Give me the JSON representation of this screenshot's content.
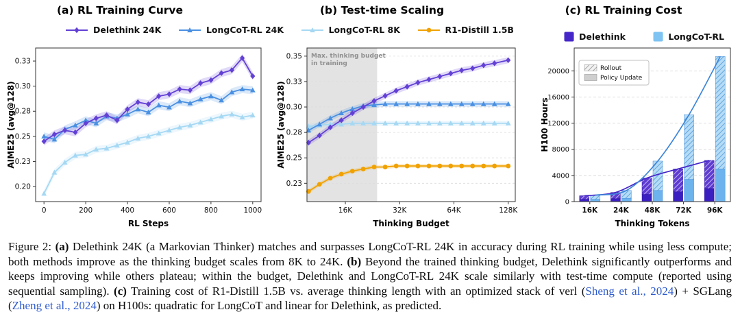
{
  "figure": {
    "panels": [
      {
        "title": "(a) RL Training Curve"
      },
      {
        "title": "(b) Test-time Scaling"
      },
      {
        "title": "(c) RL Training Cost"
      }
    ],
    "legend_ab": [
      {
        "label": "Delethink 24K",
        "color": "#6240d5",
        "marker": "diamond"
      },
      {
        "label": "LongCoT-RL 24K",
        "color": "#4a90e2",
        "marker": "triangle"
      },
      {
        "label": "LongCoT-RL 8K",
        "color": "#a5d8f3",
        "marker": "triangle"
      },
      {
        "label": "R1-Distill 1.5B",
        "color": "#f0a202",
        "marker": "circle"
      }
    ],
    "legend_c": [
      {
        "label": "Delethink",
        "color": "#4527c9"
      },
      {
        "label": "LongCoT-RL",
        "color": "#7ec3f2"
      }
    ]
  },
  "chart_data": [
    {
      "type": "line",
      "title": "(a) RL Training Curve",
      "xlabel": "RL Steps",
      "ylabel": "AIME25 (avg@128)",
      "xlim": [
        -40,
        1040
      ],
      "ylim": [
        0.185,
        0.338
      ],
      "xtick_vals": [
        0,
        200,
        400,
        600,
        800,
        1000
      ],
      "xtick_labels": [
        "0",
        "200",
        "400",
        "600",
        "800",
        "1000"
      ],
      "ytick_vals": [
        0.2,
        0.225,
        0.25,
        0.275,
        0.3,
        0.325
      ],
      "ytick_labels": [
        "0.20",
        "0.23",
        "0.25",
        "0.28",
        "0.30",
        "0.33"
      ],
      "grid": false,
      "series": [
        {
          "name": "LongCoT-RL 8K",
          "color": "#a5d8f3",
          "marker": "triangle",
          "band": 0.0035,
          "x": [
            0,
            50,
            100,
            150,
            200,
            250,
            300,
            350,
            400,
            450,
            500,
            550,
            600,
            650,
            700,
            750,
            800,
            850,
            900,
            950,
            1000
          ],
          "y": [
            0.193,
            0.214,
            0.224,
            0.231,
            0.232,
            0.237,
            0.238,
            0.241,
            0.244,
            0.248,
            0.25,
            0.253,
            0.256,
            0.259,
            0.261,
            0.264,
            0.267,
            0.27,
            0.272,
            0.269,
            0.271
          ]
        },
        {
          "name": "LongCoT-RL 24K",
          "color": "#4a90e2",
          "marker": "triangle",
          "band": 0.004,
          "x": [
            0,
            50,
            100,
            150,
            200,
            250,
            300,
            350,
            400,
            450,
            500,
            550,
            600,
            650,
            700,
            750,
            800,
            850,
            900,
            950,
            1000
          ],
          "y": [
            0.25,
            0.247,
            0.257,
            0.261,
            0.266,
            0.263,
            0.27,
            0.268,
            0.272,
            0.277,
            0.274,
            0.281,
            0.279,
            0.285,
            0.283,
            0.287,
            0.29,
            0.286,
            0.294,
            0.297,
            0.296
          ]
        },
        {
          "name": "Delethink 24K",
          "color": "#6240d5",
          "marker": "diamond",
          "band": 0.004,
          "x": [
            0,
            50,
            100,
            150,
            200,
            250,
            300,
            350,
            400,
            450,
            500,
            550,
            600,
            650,
            700,
            750,
            800,
            850,
            900,
            950,
            1000
          ],
          "y": [
            0.245,
            0.252,
            0.256,
            0.254,
            0.263,
            0.268,
            0.271,
            0.266,
            0.277,
            0.284,
            0.282,
            0.29,
            0.292,
            0.297,
            0.296,
            0.303,
            0.306,
            0.313,
            0.316,
            0.328,
            0.31
          ]
        }
      ]
    },
    {
      "type": "line",
      "title": "(b) Test-time Scaling",
      "xlabel": "Thinking Budget",
      "ylabel": "AIME25 (avg@128)",
      "xscale": "log",
      "xlim": [
        9.8,
        140
      ],
      "ylim": [
        0.207,
        0.358
      ],
      "xtick_vals": [
        16,
        32,
        64,
        128
      ],
      "xtick_labels": [
        "16K",
        "32K",
        "64K",
        "128K"
      ],
      "ytick_vals": [
        0.225,
        0.25,
        0.275,
        0.3,
        0.325,
        0.35
      ],
      "ytick_labels": [
        "0.23",
        "0.25",
        "0.28",
        "0.30",
        "0.33",
        "0.35"
      ],
      "grid": true,
      "shaded_region": {
        "from": 9.8,
        "to": 24,
        "label": "Max. thinking budget\nin training"
      },
      "series": [
        {
          "name": "R1-Distill 1.5B",
          "color": "#f0a202",
          "marker": "circle",
          "band": 0.002,
          "x": [
            10,
            11.5,
            13.2,
            15.2,
            17.5,
            20.1,
            23.1,
            26.6,
            30.6,
            35.2,
            40.4,
            46.5,
            53.4,
            61.4,
            70.6,
            81.2,
            93.4,
            107.4,
            128
          ],
          "y": [
            0.217,
            0.224,
            0.23,
            0.234,
            0.237,
            0.239,
            0.241,
            0.241,
            0.242,
            0.242,
            0.242,
            0.242,
            0.242,
            0.242,
            0.242,
            0.242,
            0.242,
            0.242,
            0.242
          ]
        },
        {
          "name": "LongCoT-RL 8K",
          "color": "#a5d8f3",
          "marker": "triangle",
          "band": 0.0025,
          "x": [
            10,
            11.5,
            13.2,
            15.2,
            17.5,
            20.1,
            23.1,
            26.6,
            30.6,
            35.2,
            40.4,
            46.5,
            53.4,
            61.4,
            70.6,
            81.2,
            93.4,
            107.4,
            128
          ],
          "y": [
            0.281,
            0.282,
            0.283,
            0.283,
            0.284,
            0.284,
            0.284,
            0.284,
            0.284,
            0.284,
            0.284,
            0.284,
            0.284,
            0.284,
            0.284,
            0.284,
            0.284,
            0.284,
            0.284
          ]
        },
        {
          "name": "LongCoT-RL 24K",
          "color": "#4a90e2",
          "marker": "triangle",
          "band": 0.0028,
          "x": [
            10,
            11.5,
            13.2,
            15.2,
            17.5,
            20.1,
            23.1,
            26.6,
            30.6,
            35.2,
            40.4,
            46.5,
            53.4,
            61.4,
            70.6,
            81.2,
            93.4,
            107.4,
            128
          ],
          "y": [
            0.277,
            0.283,
            0.289,
            0.294,
            0.298,
            0.301,
            0.302,
            0.303,
            0.303,
            0.303,
            0.303,
            0.303,
            0.303,
            0.303,
            0.303,
            0.303,
            0.303,
            0.303,
            0.303
          ]
        },
        {
          "name": "Delethink 24K",
          "color": "#6240d5",
          "marker": "diamond",
          "band": 0.003,
          "x": [
            10,
            11.5,
            13.2,
            15.2,
            17.5,
            20.1,
            23.1,
            26.6,
            30.6,
            35.2,
            40.4,
            46.5,
            53.4,
            61.4,
            70.6,
            81.2,
            93.4,
            107.4,
            128
          ],
          "y": [
            0.265,
            0.272,
            0.28,
            0.287,
            0.294,
            0.3,
            0.306,
            0.311,
            0.316,
            0.32,
            0.324,
            0.327,
            0.33,
            0.333,
            0.336,
            0.338,
            0.341,
            0.343,
            0.346
          ]
        }
      ]
    },
    {
      "type": "bar",
      "title": "(c) RL Training Cost",
      "xlabel": "Thinking Tokens",
      "ylabel": "H100 Hours",
      "categories": [
        "16K",
        "24K",
        "48K",
        "72K",
        "96K"
      ],
      "ylim": [
        0,
        23500
      ],
      "ytick_vals": [
        0,
        4000,
        8000,
        12000,
        16000,
        20000
      ],
      "ytick_labels": [
        "0",
        "4000",
        "8000",
        "12000",
        "16000",
        "20000"
      ],
      "cost_legend": [
        "Rollout",
        "Policy Update"
      ],
      "series": [
        {
          "name": "Delethink",
          "color_solid": "#3b1fc0",
          "hatch_bg": "#5e3cd2",
          "hatch_line": "#cfc3f5",
          "edge": "#2d14a0",
          "trend_color": "#4527c9",
          "policy_update": [
            350,
            450,
            1100,
            1500,
            2000
          ],
          "rollout": [
            550,
            950,
            2500,
            3500,
            4300
          ]
        },
        {
          "name": "LongCoT-RL",
          "color_solid": "#6db3ed",
          "hatch_bg": "#b5dcf7",
          "hatch_line": "#5b9fd8",
          "edge": "#4a90d9",
          "trend_color": "#3e86d9",
          "policy_update": [
            350,
            500,
            1700,
            3400,
            5000
          ],
          "rollout": [
            650,
            1200,
            4500,
            9900,
            17200
          ]
        }
      ]
    }
  ],
  "caption": {
    "link_color": "#2e5bce",
    "segments": [
      {
        "t": "Figure 2: "
      },
      {
        "t": "(a)",
        "b": true
      },
      {
        "t": " Delethink 24K (a Markovian Thinker) matches and surpasses LongCoT-RL 24K in accuracy during RL training while using less compute; both methods improve as the thinking budget scales from 8K to 24K. "
      },
      {
        "t": "(b)",
        "b": true
      },
      {
        "t": " Beyond the trained thinking budget, Delethink significantly outperforms and keeps improving while others plateau; within the budget, Delethink and LongCoT-RL 24K scale similarly with test-time compute (reported using sequential sampling). "
      },
      {
        "t": "(c)",
        "b": true
      },
      {
        "t": " Training cost of R1-Distill 1.5B vs. average thinking length with an optimized stack of verl ("
      },
      {
        "t": "Sheng et al., 2024",
        "link": true
      },
      {
        "t": ") + SGLang ("
      },
      {
        "t": "Zheng et al., 2024",
        "link": true
      },
      {
        "t": ") on H100s: quadratic for LongCoT and linear for Delethink, as predicted."
      }
    ]
  }
}
